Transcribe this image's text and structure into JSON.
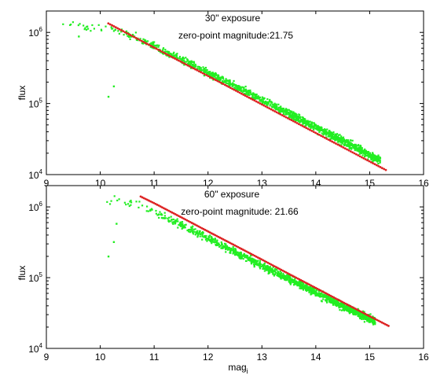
{
  "chart_data": [
    {
      "type": "scatter",
      "annotations": [
        "30\" exposure",
        "zero-point magnitude:21.75"
      ],
      "xlabel": "",
      "ylabel": "flux",
      "xlim": [
        9,
        16
      ],
      "ylim": [
        10000,
        2000000
      ],
      "yscale": "log",
      "xticks": [
        "9",
        "10",
        "11",
        "12",
        "13",
        "14",
        "15",
        "16"
      ],
      "yticks": [
        {
          "base": "10",
          "exp": "4",
          "value": 10000
        },
        {
          "base": "10",
          "exp": "5",
          "value": 100000
        },
        {
          "base": "10",
          "exp": "6",
          "value": 1000000
        }
      ],
      "grid": false,
      "colors": {
        "measured": "#22ee22",
        "fit": "#dd2222"
      },
      "series": [
        {
          "role": "measured",
          "color": "#22ee22",
          "cloud": [
            [
              9.3,
              1300000
            ],
            [
              9.6,
              1250000
            ],
            [
              9.85,
              1200000
            ],
            [
              10.2,
              1100000
            ],
            [
              10.6,
              900000
            ],
            [
              11.0,
              640000
            ],
            [
              11.5,
              420000
            ],
            [
              12.0,
              270000
            ],
            [
              12.5,
              175000
            ],
            [
              13.0,
              112000
            ],
            [
              13.5,
              72000
            ],
            [
              14.0,
              46000
            ],
            [
              14.5,
              30000
            ],
            [
              15.0,
              19000
            ],
            [
              15.2,
              15500
            ]
          ],
          "outliers": [
            [
              10.25,
              175000
            ],
            [
              10.15,
              125000
            ],
            [
              9.6,
              880000
            ],
            [
              15.05,
              15000
            ]
          ]
        },
        {
          "role": "fit",
          "color": "#dd2222",
          "x": [
            10.15,
            10.5,
            11.0,
            11.5,
            12.0,
            12.5,
            13.0,
            13.5,
            14.0,
            14.5,
            15.0,
            15.3
          ],
          "y": [
            1340000,
            970000,
            612000,
            386000,
            244000,
            154000,
            97000,
            61000,
            38500,
            24300,
            15300,
            11600
          ]
        }
      ]
    },
    {
      "type": "scatter",
      "annotations": [
        "60\" exposure",
        "zero-point magnitude: 21.66"
      ],
      "xlabel": "mag",
      "xlabel_sub": "i",
      "ylabel": "flux",
      "xlim": [
        9,
        16
      ],
      "ylim": [
        10000,
        2000000
      ],
      "yscale": "log",
      "xticks": [
        "9",
        "10",
        "11",
        "12",
        "13",
        "14",
        "15",
        "16"
      ],
      "yticks": [
        {
          "base": "10",
          "exp": "4",
          "value": 10000
        },
        {
          "base": "10",
          "exp": "5",
          "value": 100000
        },
        {
          "base": "10",
          "exp": "6",
          "value": 1000000
        }
      ],
      "grid": false,
      "colors": {
        "measured": "#22ee22",
        "fit": "#dd2222"
      },
      "series": [
        {
          "role": "measured",
          "color": "#22ee22",
          "cloud": [
            [
              10.1,
              1250000
            ],
            [
              10.3,
              1300000
            ],
            [
              10.6,
              1150000
            ],
            [
              11.0,
              850000
            ],
            [
              11.5,
              560000
            ],
            [
              12.0,
              360000
            ],
            [
              12.5,
              230000
            ],
            [
              13.0,
              148000
            ],
            [
              13.5,
              96000
            ],
            [
              14.0,
              62000
            ],
            [
              14.5,
              40000
            ],
            [
              15.0,
              26000
            ],
            [
              15.1,
              24000
            ]
          ],
          "outliers": [
            [
              10.25,
              320000
            ],
            [
              10.15,
              200000
            ],
            [
              10.3,
              580000
            ]
          ]
        },
        {
          "role": "fit",
          "color": "#dd2222",
          "x": [
            10.75,
            11.0,
            11.5,
            12.0,
            12.5,
            13.0,
            13.5,
            14.0,
            14.5,
            15.0,
            15.35
          ],
          "y": [
            1400000,
            1130000,
            715000,
            450000,
            285000,
            180000,
            113000,
            71500,
            45000,
            28500,
            20800
          ]
        }
      ]
    }
  ]
}
